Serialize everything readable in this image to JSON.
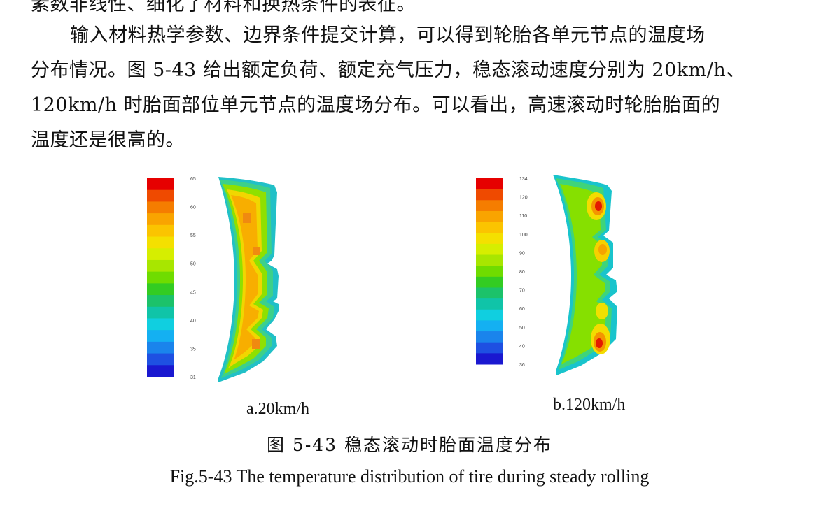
{
  "text": {
    "line0": "素数非线性、细化了材料和换热条件的表征。",
    "line1": "输入材料热学参数、边界条件提交计算，可以得到轮胎各单元节点的温度场",
    "line2": "分布情况。图 5-43 给出额定负荷、额定充气压力，稳态滚动速度分别为 20km/h、",
    "line3": "120km/h 时胎面部位单元节点的温度场分布。可以看出，高速滚动时轮胎胎面的",
    "line4": "温度还是很高的。"
  },
  "figure": {
    "panel_a": {
      "caption": "a.20km/h",
      "ticks": [
        "65",
        "60",
        "55",
        "50",
        "45",
        "40",
        "35",
        "31"
      ]
    },
    "panel_b": {
      "caption": "b.120km/h",
      "ticks": [
        "134",
        "120",
        "110",
        "100",
        "90",
        "80",
        "70",
        "60",
        "50",
        "40",
        "36"
      ]
    },
    "caption_cn": "图 5-43 稳态滚动时胎面温度分布",
    "caption_en": "Fig.5-43 The temperature distribution of tire during steady rolling"
  },
  "colors": {
    "scale": [
      "#e60000",
      "#ef4a00",
      "#f57d00",
      "#f9a400",
      "#fbc400",
      "#f4e000",
      "#d6ee00",
      "#a8e600",
      "#6fdc00",
      "#33cc22",
      "#1cc26a",
      "#10c4a8",
      "#10cfe0",
      "#14b0f2",
      "#1a84ec",
      "#1e50e2",
      "#1a18d0"
    ]
  }
}
